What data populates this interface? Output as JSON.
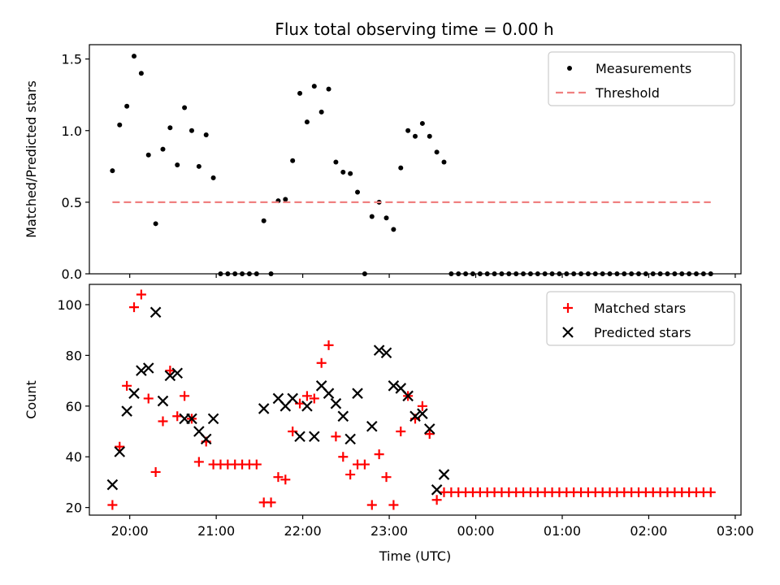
{
  "figure_title": "Flux total observing time = 0.00 h",
  "chart_data": [
    {
      "type": "scatter",
      "ylabel": "Matched/Predicted stars",
      "xlabel": "",
      "xlim": [
        "19:32",
        "27:04"
      ],
      "ylim": [
        0,
        1.6
      ],
      "x_ticks": [
        "20:00",
        "21:00",
        "22:00",
        "23:00",
        "24:00",
        "25:00",
        "26:00",
        "27:00"
      ],
      "y_ticks": [
        0,
        0.5,
        1.0,
        1.5
      ],
      "y_tick_labels": [
        "0.0",
        "0.5",
        "1.0",
        "1.5"
      ],
      "legend_position": "top-right",
      "legend": [
        "Measurements",
        "Threshold"
      ],
      "series": [
        {
          "name": "Measurements",
          "color": "#000000",
          "marker": "dot",
          "points": [
            [
              "19:48",
              0.72
            ],
            [
              "19:53",
              1.04
            ],
            [
              "19:58",
              1.17
            ],
            [
              "20:03",
              1.52
            ],
            [
              "20:08",
              1.4
            ],
            [
              "20:13",
              0.83
            ],
            [
              "20:18",
              0.35
            ],
            [
              "20:23",
              0.87
            ],
            [
              "20:28",
              1.02
            ],
            [
              "20:33",
              0.76
            ],
            [
              "20:38",
              1.16
            ],
            [
              "20:43",
              1.0
            ],
            [
              "20:48",
              0.75
            ],
            [
              "20:53",
              0.97
            ],
            [
              "20:58",
              0.67
            ],
            [
              "21:03",
              0.0
            ],
            [
              "21:08",
              0.0
            ],
            [
              "21:13",
              0.0
            ],
            [
              "21:18",
              0.0
            ],
            [
              "21:23",
              0.0
            ],
            [
              "21:28",
              0.0
            ],
            [
              "21:33",
              0.37
            ],
            [
              "21:38",
              0.0
            ],
            [
              "21:43",
              0.51
            ],
            [
              "21:48",
              0.52
            ],
            [
              "21:53",
              0.79
            ],
            [
              "21:58",
              1.26
            ],
            [
              "22:03",
              1.06
            ],
            [
              "22:08",
              1.31
            ],
            [
              "22:13",
              1.13
            ],
            [
              "22:18",
              1.29
            ],
            [
              "22:23",
              0.78
            ],
            [
              "22:28",
              0.71
            ],
            [
              "22:33",
              0.7
            ],
            [
              "22:38",
              0.57
            ],
            [
              "22:43",
              0.0
            ],
            [
              "22:48",
              0.4
            ],
            [
              "22:53",
              0.5
            ],
            [
              "22:58",
              0.39
            ],
            [
              "23:03",
              0.31
            ],
            [
              "23:08",
              0.74
            ],
            [
              "23:13",
              1.0
            ],
            [
              "23:18",
              0.96
            ],
            [
              "23:23",
              1.05
            ],
            [
              "23:28",
              0.96
            ],
            [
              "23:33",
              0.85
            ],
            [
              "23:38",
              0.78
            ],
            [
              "23:43",
              0.0
            ],
            [
              "23:48",
              0.0
            ],
            [
              "23:53",
              0.0
            ],
            [
              "23:58",
              0.0
            ],
            [
              "24:03",
              0.0
            ],
            [
              "24:08",
              0.0
            ],
            [
              "24:13",
              0.0
            ],
            [
              "24:18",
              0.0
            ],
            [
              "24:23",
              0.0
            ],
            [
              "24:28",
              0.0
            ],
            [
              "24:33",
              0.0
            ],
            [
              "24:38",
              0.0
            ],
            [
              "24:43",
              0.0
            ],
            [
              "24:48",
              0.0
            ],
            [
              "24:53",
              0.0
            ],
            [
              "24:58",
              0.0
            ],
            [
              "25:03",
              0.0
            ],
            [
              "25:08",
              0.0
            ],
            [
              "25:13",
              0.0
            ],
            [
              "25:18",
              0.0
            ],
            [
              "25:23",
              0.0
            ],
            [
              "25:28",
              0.0
            ],
            [
              "25:33",
              0.0
            ],
            [
              "25:38",
              0.0
            ],
            [
              "25:43",
              0.0
            ],
            [
              "25:48",
              0.0
            ],
            [
              "25:53",
              0.0
            ],
            [
              "25:58",
              0.0
            ],
            [
              "26:03",
              0.0
            ],
            [
              "26:08",
              0.0
            ],
            [
              "26:13",
              0.0
            ],
            [
              "26:18",
              0.0
            ],
            [
              "26:23",
              0.0
            ],
            [
              "26:28",
              0.0
            ],
            [
              "26:33",
              0.0
            ],
            [
              "26:38",
              0.0
            ],
            [
              "26:43",
              0.0
            ]
          ]
        },
        {
          "name": "Threshold",
          "color": "#f08080",
          "style": "dashed",
          "points": [
            [
              "19:48",
              0.5
            ],
            [
              "26:43",
              0.5
            ]
          ]
        }
      ]
    },
    {
      "type": "scatter",
      "ylabel": "Count",
      "xlabel": "Time (UTC)",
      "xlim": [
        "19:32",
        "27:04"
      ],
      "ylim": [
        17,
        108
      ],
      "x_ticks": [
        "20:00",
        "21:00",
        "22:00",
        "23:00",
        "24:00",
        "25:00",
        "26:00",
        "27:00"
      ],
      "x_tick_labels": [
        "20:00",
        "21:00",
        "22:00",
        "23:00",
        "00:00",
        "01:00",
        "02:00",
        "03:00"
      ],
      "y_ticks": [
        20,
        40,
        60,
        80,
        100
      ],
      "legend_position": "top-right",
      "legend": [
        "Matched stars",
        "Predicted stars"
      ],
      "series": [
        {
          "name": "Matched stars",
          "color": "#ff0000",
          "marker": "plus",
          "points": [
            [
              "19:48",
              21
            ],
            [
              "19:53",
              44
            ],
            [
              "19:58",
              68
            ],
            [
              "20:03",
              99
            ],
            [
              "20:08",
              104
            ],
            [
              "20:13",
              63
            ],
            [
              "20:18",
              34
            ],
            [
              "20:23",
              54
            ],
            [
              "20:28",
              74
            ],
            [
              "20:33",
              56
            ],
            [
              "20:38",
              64
            ],
            [
              "20:43",
              55
            ],
            [
              "20:48",
              38
            ],
            [
              "20:53",
              46
            ],
            [
              "20:58",
              37
            ],
            [
              "21:03",
              37
            ],
            [
              "21:08",
              37
            ],
            [
              "21:13",
              37
            ],
            [
              "21:18",
              37
            ],
            [
              "21:23",
              37
            ],
            [
              "21:28",
              37
            ],
            [
              "21:33",
              22
            ],
            [
              "21:38",
              22
            ],
            [
              "21:43",
              32
            ],
            [
              "21:48",
              31
            ],
            [
              "21:53",
              50
            ],
            [
              "21:58",
              61
            ],
            [
              "22:03",
              64
            ],
            [
              "22:08",
              63
            ],
            [
              "22:13",
              77
            ],
            [
              "22:18",
              84
            ],
            [
              "22:23",
              48
            ],
            [
              "22:28",
              40
            ],
            [
              "22:33",
              33
            ],
            [
              "22:38",
              37
            ],
            [
              "22:43",
              37
            ],
            [
              "22:48",
              21
            ],
            [
              "22:53",
              41
            ],
            [
              "22:58",
              32
            ],
            [
              "23:03",
              21
            ],
            [
              "23:08",
              50
            ],
            [
              "23:13",
              64
            ],
            [
              "23:18",
              55
            ],
            [
              "23:23",
              60
            ],
            [
              "23:28",
              49
            ],
            [
              "23:33",
              23
            ],
            [
              "23:38",
              26
            ],
            [
              "23:43",
              26
            ],
            [
              "23:48",
              26
            ],
            [
              "23:53",
              26
            ],
            [
              "23:58",
              26
            ],
            [
              "24:03",
              26
            ],
            [
              "24:08",
              26
            ],
            [
              "24:13",
              26
            ],
            [
              "24:18",
              26
            ],
            [
              "24:23",
              26
            ],
            [
              "24:28",
              26
            ],
            [
              "24:33",
              26
            ],
            [
              "24:38",
              26
            ],
            [
              "24:43",
              26
            ],
            [
              "24:48",
              26
            ],
            [
              "24:53",
              26
            ],
            [
              "24:58",
              26
            ],
            [
              "25:03",
              26
            ],
            [
              "25:08",
              26
            ],
            [
              "25:13",
              26
            ],
            [
              "25:18",
              26
            ],
            [
              "25:23",
              26
            ],
            [
              "25:28",
              26
            ],
            [
              "25:33",
              26
            ],
            [
              "25:38",
              26
            ],
            [
              "25:43",
              26
            ],
            [
              "25:48",
              26
            ],
            [
              "25:53",
              26
            ],
            [
              "25:58",
              26
            ],
            [
              "26:03",
              26
            ],
            [
              "26:08",
              26
            ],
            [
              "26:13",
              26
            ],
            [
              "26:18",
              26
            ],
            [
              "26:23",
              26
            ],
            [
              "26:28",
              26
            ],
            [
              "26:33",
              26
            ],
            [
              "26:38",
              26
            ],
            [
              "26:43",
              26
            ]
          ]
        },
        {
          "name": "Predicted stars",
          "color": "#000000",
          "marker": "x",
          "points": [
            [
              "19:48",
              29
            ],
            [
              "19:53",
              42
            ],
            [
              "19:58",
              58
            ],
            [
              "20:03",
              65
            ],
            [
              "20:08",
              74
            ],
            [
              "20:13",
              75
            ],
            [
              "20:18",
              97
            ],
            [
              "20:23",
              62
            ],
            [
              "20:28",
              72
            ],
            [
              "20:33",
              73
            ],
            [
              "20:38",
              55
            ],
            [
              "20:43",
              55
            ],
            [
              "20:48",
              50
            ],
            [
              "20:53",
              47
            ],
            [
              "20:58",
              55
            ],
            [
              "21:33",
              59
            ],
            [
              "21:43",
              63
            ],
            [
              "21:48",
              60
            ],
            [
              "21:53",
              63
            ],
            [
              "21:58",
              48
            ],
            [
              "22:03",
              60
            ],
            [
              "22:08",
              48
            ],
            [
              "22:13",
              68
            ],
            [
              "22:18",
              65
            ],
            [
              "22:23",
              61
            ],
            [
              "22:28",
              56
            ],
            [
              "22:33",
              47
            ],
            [
              "22:38",
              65
            ],
            [
              "22:48",
              52
            ],
            [
              "22:53",
              82
            ],
            [
              "22:58",
              81
            ],
            [
              "23:03",
              68
            ],
            [
              "23:08",
              67
            ],
            [
              "23:13",
              64
            ],
            [
              "23:18",
              56
            ],
            [
              "23:23",
              57
            ],
            [
              "23:28",
              51
            ],
            [
              "23:33",
              27
            ],
            [
              "23:38",
              33
            ]
          ]
        }
      ]
    }
  ]
}
